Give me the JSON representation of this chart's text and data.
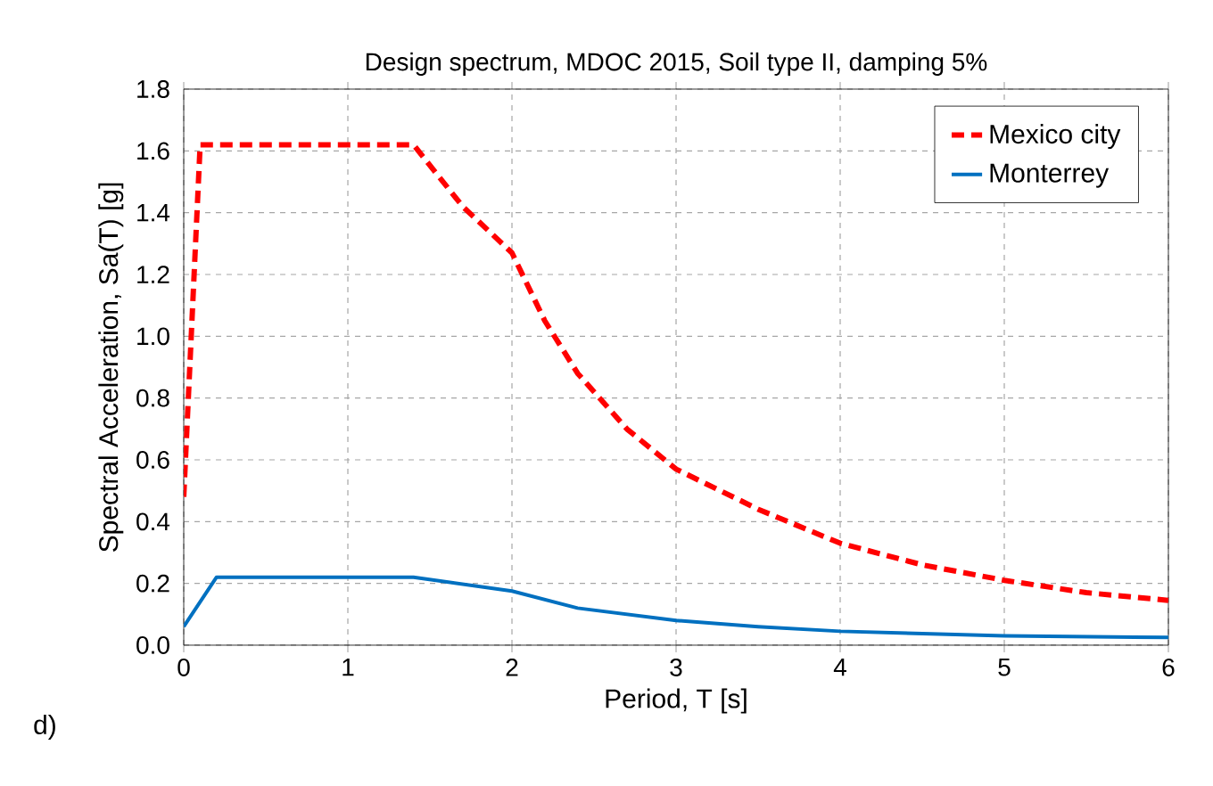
{
  "chart_data": {
    "type": "line",
    "title": "Design spectrum, MDOC 2015, Soil type II, damping 5%",
    "xlabel": "Period, T [s]",
    "ylabel": "Spectral Acceleration, Sa(T) [g]",
    "annotations": [
      "d)"
    ],
    "xlim": [
      0,
      6
    ],
    "ylim": [
      0,
      1.8
    ],
    "xticks": [
      0,
      1,
      2,
      3,
      4,
      5,
      6
    ],
    "yticks": [
      {
        "value": 0,
        "label": "0.0"
      },
      {
        "value": 0.2,
        "label": "0.2"
      },
      {
        "value": 0.4,
        "label": "0.4"
      },
      {
        "value": 0.6,
        "label": "0.6"
      },
      {
        "value": 0.8,
        "label": "0.8"
      },
      {
        "value": 1.0,
        "label": "1.0"
      },
      {
        "value": 1.2,
        "label": "1.2"
      },
      {
        "value": 1.4,
        "label": "1.4"
      },
      {
        "value": 1.6,
        "label": "1.6"
      },
      {
        "value": 1.8,
        "label": "1.8"
      }
    ],
    "grid": true,
    "legend": "top right",
    "series": [
      {
        "name": "Mexico city",
        "color": "#ff0000",
        "line_style": "dashed",
        "x": [
          0,
          0.1,
          1.4,
          1.7,
          2.0,
          2.2,
          2.4,
          2.7,
          3.0,
          3.5,
          4.0,
          4.5,
          5.0,
          5.5,
          6.0
        ],
        "values": [
          0.48,
          1.62,
          1.62,
          1.42,
          1.27,
          1.05,
          0.88,
          0.7,
          0.57,
          0.44,
          0.33,
          0.26,
          0.21,
          0.17,
          0.145
        ]
      },
      {
        "name": "Monterrey",
        "color": "#0070c0",
        "line_style": "solid",
        "x": [
          0,
          0.2,
          1.4,
          2.0,
          2.4,
          3.0,
          3.5,
          4.0,
          5.0,
          6.0
        ],
        "values": [
          0.06,
          0.22,
          0.22,
          0.175,
          0.12,
          0.08,
          0.06,
          0.045,
          0.03,
          0.025
        ]
      }
    ]
  }
}
